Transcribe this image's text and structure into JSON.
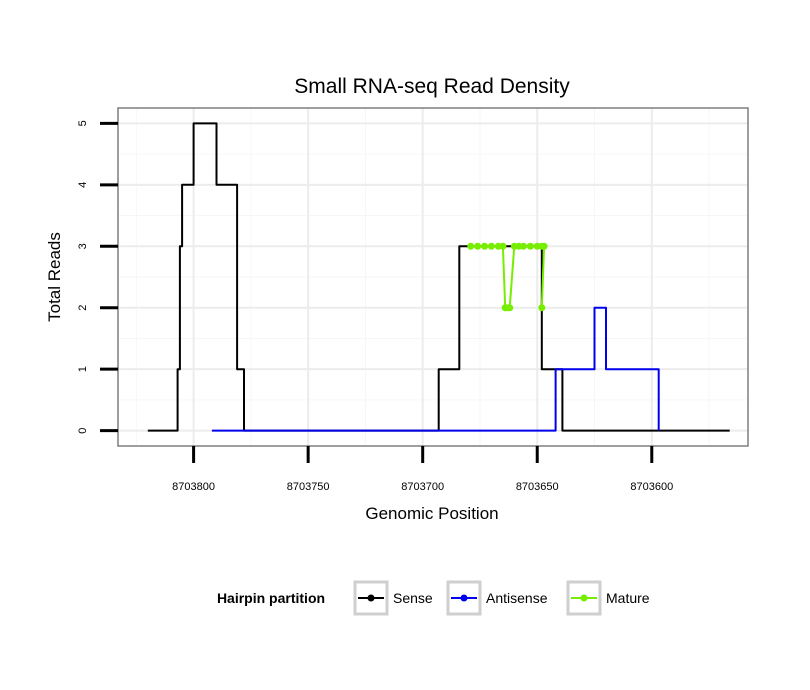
{
  "chart_data": {
    "type": "line",
    "title": "Small RNA-seq Read Density",
    "xlabel": "Genomic Position",
    "ylabel": "Total Reads",
    "xlim": [
      8703833,
      8703558
    ],
    "ylim": [
      -0.25,
      5.25
    ],
    "x_reversed": true,
    "grid": true,
    "x_ticks": [
      8703800,
      8703750,
      8703700,
      8703650,
      8703600
    ],
    "x_tick_labels": [
      "8703800",
      "8703750",
      "8703700",
      "8703650",
      "8703600"
    ],
    "y_ticks": [
      0,
      1,
      2,
      3,
      4,
      5
    ],
    "y_tick_labels": [
      "0",
      "1",
      "2",
      "3",
      "4",
      "5"
    ],
    "legend": {
      "title": "Hairpin partition",
      "position": "bottom"
    },
    "series": [
      {
        "name": "Sense",
        "color": "#000000",
        "marker": "point",
        "x": [
          8703820,
          8703807,
          8703807,
          8703806,
          8703806,
          8703805,
          8703805,
          8703800,
          8703800,
          8703793,
          8703793,
          8703790,
          8703790,
          8703782,
          8703782,
          8703781,
          8703781,
          8703778,
          8703778,
          8703771,
          8703771,
          8703721,
          8703721,
          8703721,
          8703721,
          8703712,
          8703712,
          8703693,
          8703693,
          8703684,
          8703684,
          8703679,
          8703679,
          8703678,
          8703678,
          8703669,
          8703669,
          8703664,
          8703664,
          8703651,
          8703651,
          8703648,
          8703648,
          8703640,
          8703640,
          8703639,
          8703639,
          8703633,
          8703633,
          8703566
        ],
        "values": [
          0,
          0,
          1,
          1,
          3,
          3,
          4,
          4,
          5,
          5,
          5,
          5,
          4,
          4,
          4,
          4,
          1,
          1,
          0,
          0,
          0,
          0,
          0,
          0,
          0,
          0,
          0,
          0,
          1,
          1,
          3,
          3,
          3,
          3,
          3,
          3,
          3,
          3,
          3,
          3,
          3,
          3,
          1,
          1,
          1,
          1,
          0,
          0,
          0,
          0
        ]
      },
      {
        "name": "Antisense",
        "color": "#0000ee",
        "marker": "point",
        "x": [
          8703792,
          8703642,
          8703642,
          8703634,
          8703634,
          8703625,
          8703625,
          8703620,
          8703620,
          8703597,
          8703597
        ],
        "values": [
          0,
          0,
          1,
          1,
          1,
          1,
          2,
          2,
          1,
          1,
          0
        ]
      },
      {
        "name": "Mature",
        "color": "#77ee00",
        "marker": "point",
        "x": [
          8703679,
          8703676,
          8703673,
          8703670,
          8703667,
          8703665,
          8703664,
          8703663,
          8703662,
          8703660,
          8703658,
          8703656,
          8703653,
          8703650,
          8703648,
          8703647,
          8703648
        ],
        "values": [
          3,
          3,
          3,
          3,
          3,
          3,
          2,
          2,
          2,
          3,
          3,
          3,
          3,
          3,
          3,
          3,
          2
        ]
      }
    ]
  }
}
